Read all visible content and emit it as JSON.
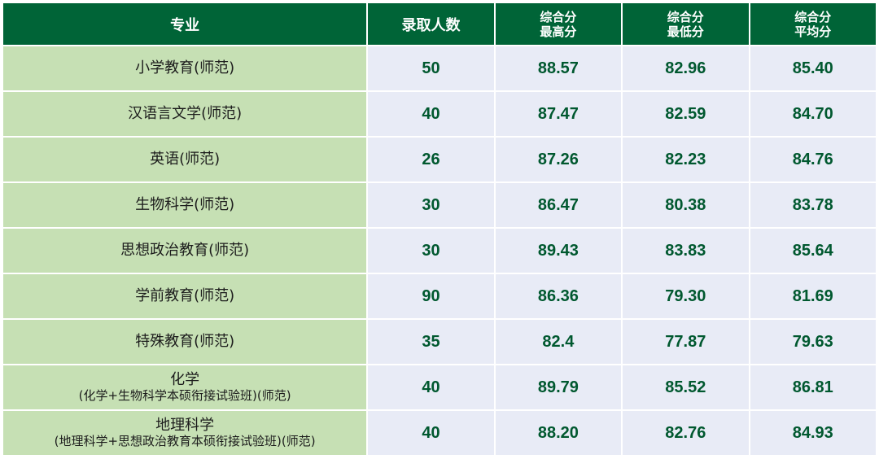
{
  "table": {
    "headers": {
      "major": "专业",
      "count": "录取人数",
      "max": [
        "综合分",
        "最高分"
      ],
      "min": [
        "综合分",
        "最低分"
      ],
      "avg": [
        "综合分",
        "平均分"
      ]
    },
    "rows": [
      {
        "major": "小学教育(师范)",
        "major_sub": "",
        "count": "50",
        "max": "88.57",
        "min": "82.96",
        "avg": "85.40"
      },
      {
        "major": "汉语言文学(师范)",
        "major_sub": "",
        "count": "40",
        "max": "87.47",
        "min": "82.59",
        "avg": "84.70"
      },
      {
        "major": "英语(师范)",
        "major_sub": "",
        "count": "26",
        "max": "87.26",
        "min": "82.23",
        "avg": "84.76"
      },
      {
        "major": "生物科学(师范)",
        "major_sub": "",
        "count": "30",
        "max": "86.47",
        "min": "80.38",
        "avg": "83.78"
      },
      {
        "major": "思想政治教育(师范)",
        "major_sub": "",
        "count": "30",
        "max": "89.43",
        "min": "83.83",
        "avg": "85.64"
      },
      {
        "major": "学前教育(师范)",
        "major_sub": "",
        "count": "90",
        "max": "86.36",
        "min": "79.30",
        "avg": "81.69"
      },
      {
        "major": "特殊教育(师范)",
        "major_sub": "",
        "count": "35",
        "max": "82.4",
        "min": "77.87",
        "avg": "79.63"
      },
      {
        "major": "化学",
        "major_sub": "(化学+生物科学本硕衔接试验班)(师范)",
        "count": "40",
        "max": "89.79",
        "min": "85.52",
        "avg": "86.81"
      },
      {
        "major": "地理科学",
        "major_sub": "(地理科学+思想政治教育本硕衔接试验班)(师范)",
        "count": "40",
        "max": "88.20",
        "min": "82.76",
        "avg": "84.93"
      }
    ]
  },
  "colors": {
    "header_bg": "#006437",
    "major_bg": "#c6e0b4",
    "value_bg": "#e8ebf6",
    "value_text": "#00582f"
  }
}
